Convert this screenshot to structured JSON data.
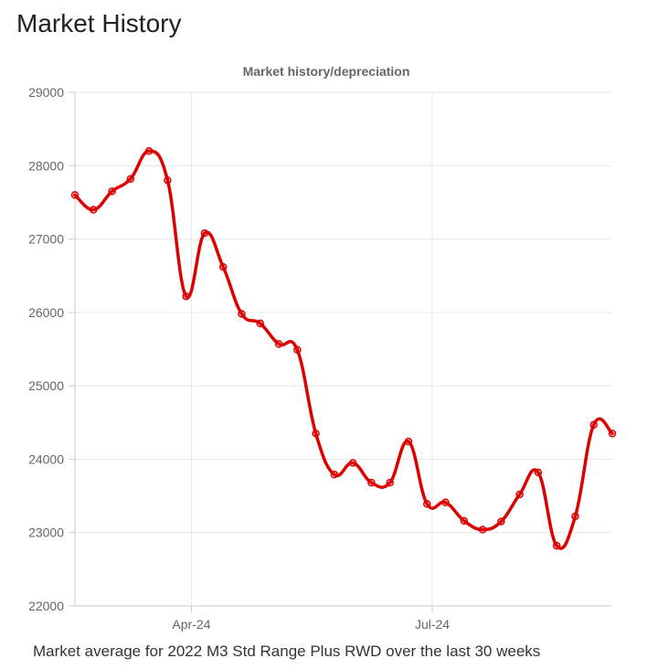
{
  "page": {
    "title": "Market History",
    "caption": "Market average for 2022 M3 Std Range Plus RWD over the last 30 weeks"
  },
  "chart_data": {
    "type": "line",
    "title": "Market history/depreciation",
    "xlabel": "",
    "ylabel": "",
    "ylim": [
      22000,
      29000
    ],
    "yticks": [
      22000,
      23000,
      24000,
      25000,
      26000,
      27000,
      28000,
      29000
    ],
    "xticks": [
      "Apr-24",
      "Jul-24"
    ],
    "grid": true,
    "legend": "none",
    "series": [
      {
        "color": "#dd0000",
        "x": [
          "2024-02-17",
          "2024-02-24",
          "2024-03-02",
          "2024-03-09",
          "2024-03-16",
          "2024-03-23",
          "2024-03-30",
          "2024-04-06",
          "2024-04-13",
          "2024-04-20",
          "2024-04-27",
          "2024-05-04",
          "2024-05-11",
          "2024-05-18",
          "2024-05-25",
          "2024-06-01",
          "2024-06-08",
          "2024-06-15",
          "2024-06-22",
          "2024-06-29",
          "2024-07-06",
          "2024-07-13",
          "2024-07-20",
          "2024-07-27",
          "2024-08-03",
          "2024-08-10",
          "2024-08-17",
          "2024-08-24",
          "2024-08-31",
          "2024-09-07"
        ],
        "values": [
          27600,
          27400,
          27650,
          27820,
          28200,
          27800,
          26220,
          27080,
          26620,
          25980,
          25850,
          25570,
          25490,
          24350,
          23790,
          23950,
          23680,
          23680,
          24240,
          23390,
          23410,
          23160,
          23040,
          23150,
          23520,
          23820,
          22820,
          23220,
          24470,
          24350
        ]
      }
    ]
  }
}
